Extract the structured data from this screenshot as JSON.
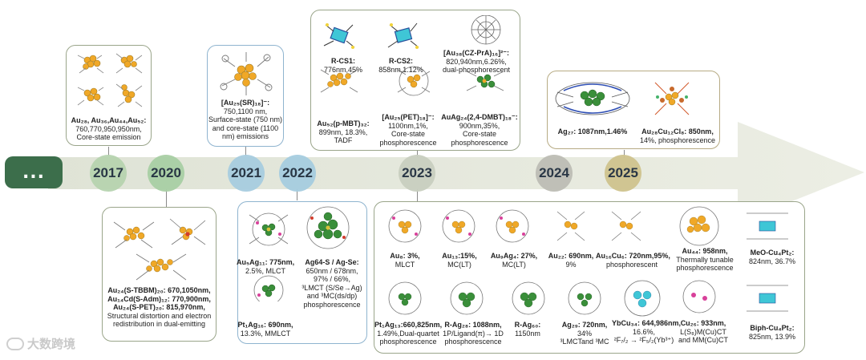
{
  "timeline": {
    "start_label": "...",
    "years": [
      "2017",
      "2020",
      "2021",
      "2022",
      "2023",
      "2024",
      "2025"
    ],
    "colors": {
      "2017": "#b7d4b0",
      "2020": "#a9cfa5",
      "2021": "#a8cde0",
      "2022": "#a6cde0",
      "2023": "#c9cfc0",
      "2024": "#bdbdb5",
      "2025": "#cfc48e"
    }
  },
  "captions": {
    "y2017": [
      "Au₂₈, Au₃₆,Au₄₄,Au₅₂:",
      "760,770,950,950nm,",
      "Core-state emission"
    ],
    "y2020": [
      "Au₂₄(S-TBBM)₂₀: 670,1050nm,",
      "Au₁₄Cd(S-Adm)₁₂: 770,900nm,",
      "Au₂₄(S-PET)₂₀: 815,970nm,",
      "Structural distortion and electron",
      "redistribution in dual-emitting"
    ],
    "y2021": [
      "[Au₂₅(SR)₁₈]⁻:",
      "750,1100 nm,",
      "Surface-state (750 nm)",
      "and core-state (1100",
      "nm) emissions"
    ],
    "y2022_a": [
      "Au₅Ag₁₁: 775nm,",
      "2.5%, MLCT"
    ],
    "y2022_b": [
      "Pt₁Ag₁₆: 690nm,",
      "13.3%, MMLCT"
    ],
    "y2022_c": [
      "Ag64-S / Ag-Se:",
      "650nm / 678nm,",
      "97% / 66%,",
      "³LMCT (S/Se→Ag)",
      "and ³MC(ds/dp)",
      "phosphorescence"
    ],
    "y2023_rcs1": [
      "R-CS1:",
      "776nm,45%"
    ],
    "y2023_rcs2": [
      "R-CS2:",
      "858nm,1.12%"
    ],
    "y2023_cz": [
      "[Au₃₈(CZ-PrA)₁₆]²⁻:",
      "820,940nm,6.26%,",
      "dual-phosphorescent"
    ],
    "y2023_au52": [
      "Au₅₂(p-MBT)₃₂:",
      "899nm, 18.3%,",
      "TADF"
    ],
    "y2023_au25": [
      "[Au₂₅(PET)₁₈]⁻:",
      "1100nm,1%,",
      "Core-state",
      "phosphorescence"
    ],
    "y2023_auag": [
      "AuAg₂₄(2,4-DMBT)₁₈⁻:",
      "900nm,35%,",
      "Core-state",
      "phosphorescence"
    ],
    "y2025_ag27": [
      "Ag₂₇: 1087nm,1.46%"
    ],
    "y2025_au28": [
      "Au₂₈Cu₁₂Cl₈: 850nm,",
      "14%, phosphorescence"
    ],
    "y2024": [
      [
        "Au₈: 3%,",
        "MLCT"
      ],
      [
        "Au₁₃:15%,",
        "MC(LT)"
      ],
      [
        "Au₉Ag₄: 27%,",
        "MC(LT)"
      ],
      [
        "Au₂₂: 690nm,",
        "9%"
      ],
      [
        "Au₁₆Cu₆: 720nm,95%,",
        "phosphorescent"
      ],
      [
        "Au₄₄: 958nm,",
        "Thermally tunable",
        "phosphorescence"
      ],
      [
        "MeO-Cu₄Pt₂:",
        "824nm, 36.7%"
      ],
      [
        "Pt₁Ag₁₃:660,825nm,",
        "1.49%,Dual-quartet",
        "phosphorescence"
      ],
      [
        "R-Ag₂₈: 1088nm,",
        "1P/Ligand(π)→ 1D",
        "phosphorescence"
      ],
      [
        "R-Ag₆₀:",
        "1150nm"
      ],
      [
        "Ag₂₉: 720nm,",
        "34%",
        "³LMCTand ³MC"
      ],
      [
        "YbCu₃₄: 644,986nm,",
        "16.6%,",
        "²F₇/₂ → ²F₅/₂(Yb³⁺)"
      ],
      [
        "Cu₂₆: 933nm,",
        "L(S₈)M(Cu)CT",
        "and MM(Cu)CT"
      ],
      [
        "Biph-Cu₄Pt₂:",
        "825nm, 13.9%"
      ]
    ]
  },
  "watermark": "大数跨境"
}
